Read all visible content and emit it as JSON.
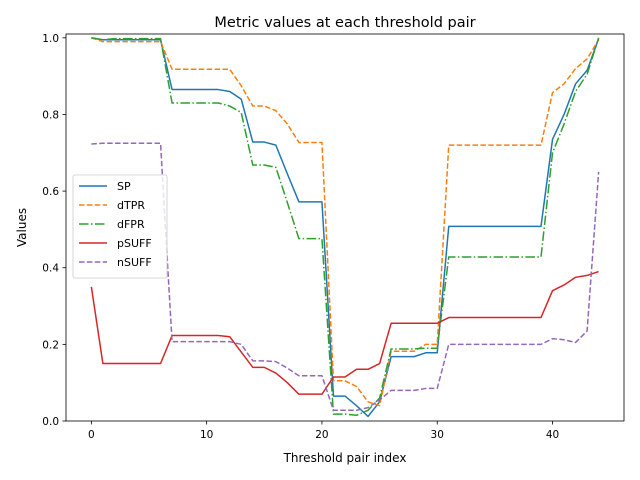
{
  "chart_data": {
    "type": "line",
    "title": "Metric values at each threshold pair",
    "xlabel": "Threshold pair index",
    "ylabel": "Values",
    "xlim": [
      -2.2,
      46.2
    ],
    "ylim": [
      0.0,
      1.01
    ],
    "xticks": [
      0,
      10,
      20,
      30,
      40
    ],
    "xtick_labels": [
      "0",
      "10",
      "20",
      "30",
      "40"
    ],
    "yticks": [
      0.0,
      0.2,
      0.4,
      0.6,
      0.8,
      1.0
    ],
    "ytick_labels": [
      "0.0",
      "0.2",
      "0.4",
      "0.6",
      "0.8",
      "1.0"
    ],
    "grid": false,
    "legend_position": "center-left",
    "x": [
      0,
      1,
      2,
      3,
      4,
      5,
      6,
      7,
      8,
      9,
      10,
      11,
      12,
      13,
      14,
      15,
      16,
      17,
      18,
      19,
      20,
      21,
      22,
      23,
      24,
      25,
      26,
      27,
      28,
      29,
      30,
      31,
      32,
      33,
      34,
      35,
      36,
      37,
      38,
      39,
      40,
      41,
      42,
      43,
      44
    ],
    "series": [
      {
        "name": "SP",
        "color": "#1f77b4",
        "dash": "solid",
        "values": [
          1.0,
          0.995,
          0.995,
          0.995,
          0.995,
          0.995,
          0.995,
          0.865,
          0.865,
          0.865,
          0.865,
          0.865,
          0.86,
          0.84,
          0.728,
          0.728,
          0.72,
          0.645,
          0.572,
          0.572,
          0.572,
          0.065,
          0.065,
          0.04,
          0.012,
          0.05,
          0.168,
          0.168,
          0.168,
          0.178,
          0.178,
          0.508,
          0.508,
          0.508,
          0.508,
          0.508,
          0.508,
          0.508,
          0.508,
          0.508,
          0.735,
          0.8,
          0.88,
          0.915,
          0.998
        ]
      },
      {
        "name": "dTPR",
        "color": "#ff7f0e",
        "dash": "dashed",
        "values": [
          1.0,
          0.99,
          0.99,
          0.99,
          0.99,
          0.99,
          0.99,
          0.918,
          0.918,
          0.918,
          0.918,
          0.918,
          0.918,
          0.875,
          0.822,
          0.822,
          0.81,
          0.775,
          0.727,
          0.727,
          0.727,
          0.105,
          0.105,
          0.09,
          0.05,
          0.04,
          0.182,
          0.182,
          0.182,
          0.2,
          0.2,
          0.72,
          0.72,
          0.72,
          0.72,
          0.72,
          0.72,
          0.72,
          0.72,
          0.72,
          0.857,
          0.88,
          0.92,
          0.945,
          0.995
        ]
      },
      {
        "name": "dFPR",
        "color": "#2ca02c",
        "dash": "dashdot",
        "values": [
          1.0,
          0.995,
          0.998,
          0.998,
          0.998,
          0.998,
          0.998,
          0.83,
          0.83,
          0.83,
          0.83,
          0.83,
          0.822,
          0.805,
          0.668,
          0.668,
          0.662,
          0.57,
          0.476,
          0.476,
          0.476,
          0.018,
          0.018,
          0.015,
          0.028,
          0.06,
          0.188,
          0.188,
          0.188,
          0.19,
          0.19,
          0.428,
          0.428,
          0.428,
          0.428,
          0.428,
          0.428,
          0.428,
          0.428,
          0.428,
          0.7,
          0.775,
          0.86,
          0.905,
          1.0
        ]
      },
      {
        "name": "pSUFF",
        "color": "#d62728",
        "dash": "solid",
        "values": [
          0.35,
          0.15,
          0.15,
          0.15,
          0.15,
          0.15,
          0.15,
          0.223,
          0.223,
          0.223,
          0.223,
          0.223,
          0.22,
          0.18,
          0.14,
          0.14,
          0.125,
          0.1,
          0.07,
          0.07,
          0.07,
          0.115,
          0.115,
          0.135,
          0.135,
          0.15,
          0.255,
          0.255,
          0.255,
          0.255,
          0.255,
          0.27,
          0.27,
          0.27,
          0.27,
          0.27,
          0.27,
          0.27,
          0.27,
          0.27,
          0.34,
          0.355,
          0.375,
          0.38,
          0.39
        ]
      },
      {
        "name": "nSUFF",
        "color": "#9467bd",
        "dash": "dashed",
        "values": [
          0.723,
          0.725,
          0.725,
          0.725,
          0.725,
          0.725,
          0.725,
          0.207,
          0.207,
          0.207,
          0.207,
          0.207,
          0.207,
          0.2,
          0.157,
          0.157,
          0.155,
          0.138,
          0.118,
          0.118,
          0.118,
          0.028,
          0.028,
          0.028,
          0.035,
          0.055,
          0.08,
          0.08,
          0.08,
          0.085,
          0.085,
          0.2,
          0.2,
          0.2,
          0.2,
          0.2,
          0.2,
          0.2,
          0.2,
          0.2,
          0.215,
          0.212,
          0.205,
          0.235,
          0.65
        ]
      }
    ]
  }
}
